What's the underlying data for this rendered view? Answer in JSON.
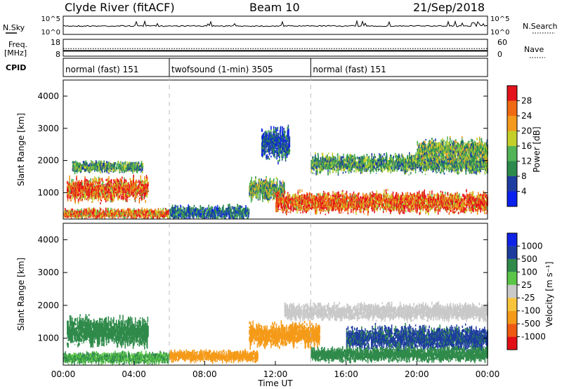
{
  "header": {
    "title": "Clyde River (fitACF)",
    "beam": "Beam 10",
    "date": "21/Sep/2018"
  },
  "noise_panel": {
    "left_label": "N.Sky",
    "left_ticks": [
      "10^5",
      "10^0"
    ],
    "right_label": "N.Search",
    "right_ticks": [
      "10^5",
      "10^0"
    ]
  },
  "freq_panel": {
    "left_label_1": "Freq.",
    "left_label_2": "[MHz]",
    "left_ticks": [
      "18",
      "8"
    ],
    "right_label": "Nave",
    "right_ticks": [
      "60",
      "0"
    ],
    "sky_level": 10,
    "freq_level": 12.5,
    "nave_level": 0.15
  },
  "cpid": {
    "label": "CPID",
    "segments": [
      {
        "label": "normal (fast) 151",
        "start_hour": 0,
        "end_hour": 6
      },
      {
        "label": "twofsound (1-min) 3505",
        "start_hour": 6,
        "end_hour": 14
      },
      {
        "label": "normal (fast) 151",
        "start_hour": 14,
        "end_hour": 24
      }
    ]
  },
  "chart_data": [
    {
      "type": "heatmap",
      "title": "",
      "xlabel": "",
      "ylabel": "Slant Range [km]",
      "xlim": [
        0,
        24
      ],
      "ylim": [
        180,
        4500
      ],
      "yticks": [
        "4000",
        "3000",
        "2000",
        "1000"
      ],
      "colorbar": {
        "label": "Power [dB]",
        "ticks": [
          "28",
          "24",
          "20",
          "16",
          "12",
          "8",
          "4"
        ],
        "colors": [
          "#0a20ee",
          "#1d3da0",
          "#2b8a4c",
          "#53b357",
          "#c4cf2a",
          "#f39a1c",
          "#ef6a12",
          "#e4121b"
        ]
      },
      "series": [
        {
          "start_hour": 0.2,
          "end_hour": 4.8,
          "range_center": 1100,
          "range_width": 500,
          "value": 26
        },
        {
          "start_hour": 0.5,
          "end_hour": 4.5,
          "range_center": 1800,
          "range_width": 250,
          "value": 12
        },
        {
          "start_hour": 0.0,
          "end_hour": 6.0,
          "range_center": 350,
          "range_width": 220,
          "value": 24
        },
        {
          "start_hour": 6.0,
          "end_hour": 10.5,
          "range_center": 380,
          "range_width": 300,
          "value": 8
        },
        {
          "start_hour": 10.5,
          "end_hour": 12.5,
          "range_center": 1100,
          "range_width": 500,
          "value": 14
        },
        {
          "start_hour": 11.2,
          "end_hour": 12.8,
          "range_center": 2500,
          "range_width": 700,
          "value": 6
        },
        {
          "start_hour": 12.0,
          "end_hour": 24.0,
          "range_center": 700,
          "range_width": 450,
          "value": 27
        },
        {
          "start_hour": 14.0,
          "end_hour": 24.0,
          "range_center": 1900,
          "range_width": 400,
          "value": 12
        },
        {
          "start_hour": 20.0,
          "end_hour": 24.0,
          "range_center": 2300,
          "range_width": 500,
          "value": 14
        }
      ]
    },
    {
      "type": "heatmap",
      "title": "",
      "xlabel": "Time UT",
      "ylabel": "Slant Range [km]",
      "xlim": [
        0,
        24
      ],
      "ylim": [
        180,
        4500
      ],
      "xticks": [
        "00:00",
        "04:00",
        "08:00",
        "12:00",
        "16:00",
        "20:00",
        "00:00"
      ],
      "yticks": [
        "4000",
        "3000",
        "2000",
        "1000"
      ],
      "colorbar": {
        "label": "Velocity [m s⁻¹]",
        "ticks": [
          "1000",
          "500",
          "100",
          "25",
          "-25",
          "-100",
          "-500",
          "-1000"
        ],
        "colors": [
          "#e30f16",
          "#ef5a12",
          "#f59a18",
          "#f8c43a",
          "#c9c9c9",
          "#5ac546",
          "#2f8a4a",
          "#1d3c9e",
          "#0f23e6"
        ]
      },
      "series": [
        {
          "start_hour": 0.2,
          "end_hour": 4.8,
          "range_center": 1200,
          "range_width": 600,
          "value": 300
        },
        {
          "start_hour": 0.0,
          "end_hour": 6.0,
          "range_center": 400,
          "range_width": 250,
          "value": 100
        },
        {
          "start_hour": 6.0,
          "end_hour": 11.0,
          "range_center": 450,
          "range_width": 250,
          "value": -200
        },
        {
          "start_hour": 10.5,
          "end_hour": 14.5,
          "range_center": 1100,
          "range_width": 500,
          "value": -350
        },
        {
          "start_hour": 12.5,
          "end_hour": 24.0,
          "range_center": 1800,
          "range_width": 350,
          "value": 0
        },
        {
          "start_hour": 16.0,
          "end_hour": 24.0,
          "range_center": 1000,
          "range_width": 500,
          "value": 600
        },
        {
          "start_hour": 14.0,
          "end_hour": 24.0,
          "range_center": 500,
          "range_width": 300,
          "value": 150
        }
      ]
    }
  ]
}
